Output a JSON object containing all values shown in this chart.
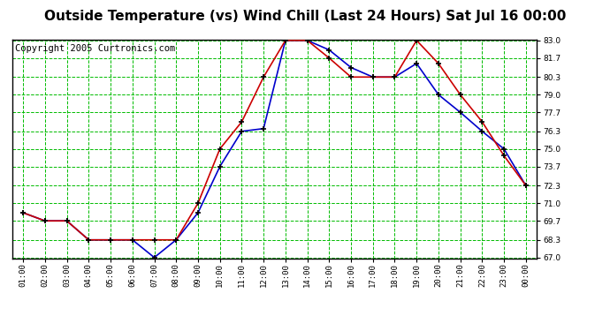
{
  "title": "Outside Temperature (vs) Wind Chill (Last 24 Hours) Sat Jul 16 00:00",
  "copyright": "Copyright 2005 Curtronics.com",
  "x_labels": [
    "01:00",
    "02:00",
    "03:00",
    "04:00",
    "05:00",
    "06:00",
    "07:00",
    "08:00",
    "09:00",
    "10:00",
    "11:00",
    "12:00",
    "13:00",
    "14:00",
    "15:00",
    "16:00",
    "17:00",
    "18:00",
    "19:00",
    "20:00",
    "21:00",
    "22:00",
    "23:00",
    "00:00"
  ],
  "outside_temp": [
    70.3,
    69.7,
    69.7,
    68.3,
    68.3,
    68.3,
    67.0,
    68.3,
    70.3,
    73.7,
    76.3,
    76.5,
    83.0,
    83.0,
    82.3,
    81.0,
    80.3,
    80.3,
    81.3,
    79.0,
    77.7,
    76.3,
    75.0,
    72.3
  ],
  "wind_chill": [
    70.3,
    69.7,
    69.7,
    68.3,
    68.3,
    68.3,
    68.3,
    68.3,
    71.0,
    75.0,
    77.0,
    80.3,
    83.0,
    83.0,
    81.7,
    80.3,
    80.3,
    80.3,
    83.0,
    81.3,
    79.0,
    77.0,
    74.5,
    72.3
  ],
  "ylim_min": 67.0,
  "ylim_max": 83.0,
  "yticks": [
    67.0,
    68.3,
    69.7,
    71.0,
    72.3,
    73.7,
    75.0,
    76.3,
    77.7,
    79.0,
    80.3,
    81.7,
    83.0
  ],
  "bg_color": "#ffffff",
  "plot_bg_color": "#ffffff",
  "grid_color": "#00bb00",
  "outside_temp_color": "#0000cc",
  "wind_chill_color": "#cc0000",
  "title_fontsize": 11,
  "copyright_fontsize": 7.5
}
